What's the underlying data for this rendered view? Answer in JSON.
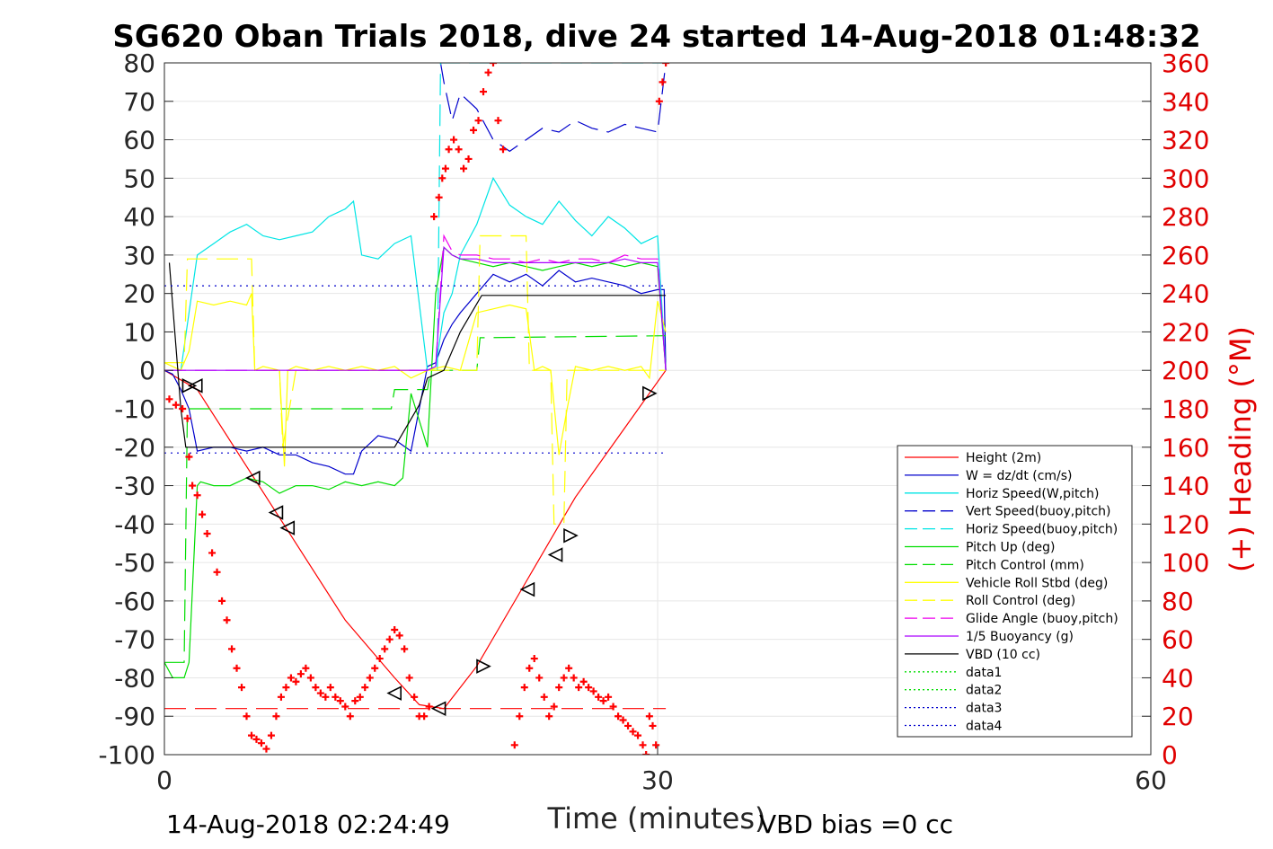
{
  "chart_data": {
    "type": "line",
    "title": "SG620 Oban Trials 2018, dive 24 started 14-Aug-2018 01:48:32",
    "xlabel": "Time (minutes)",
    "ylabel_right": "(+) Heading (°M)",
    "xlim": [
      0,
      60
    ],
    "ylim_left": [
      -100,
      80
    ],
    "ylim_right": [
      0,
      360
    ],
    "x_ticks": [
      "0",
      "30",
      "60"
    ],
    "y_left_ticks": [
      "80",
      "70",
      "60",
      "50",
      "40",
      "30",
      "20",
      "10",
      "0",
      "-10",
      "-20",
      "-30",
      "-40",
      "-50",
      "-60",
      "-70",
      "-80",
      "-90",
      "-100"
    ],
    "y_right_ticks": [
      "360",
      "340",
      "320",
      "300",
      "280",
      "260",
      "240",
      "220",
      "200",
      "180",
      "160",
      "140",
      "120",
      "100",
      "80",
      "60",
      "40",
      "20",
      "0"
    ],
    "grid": true,
    "legend_position": "lower-right",
    "footer_left": "14-Aug-2018 02:24:49",
    "footer_right": "VBD bias =0 cc",
    "legend": [
      {
        "name": "Height (2m)",
        "color": "#ff0000",
        "dash": "solid"
      },
      {
        "name": "W = dz/dt (cm/s)",
        "color": "#0000cc",
        "dash": "solid"
      },
      {
        "name": "Horiz Speed(W,pitch)",
        "color": "#00e5e5",
        "dash": "solid"
      },
      {
        "name": "Vert Speed(buoy,pitch)",
        "color": "#0000cc",
        "dash": "dashed"
      },
      {
        "name": "Horiz Speed(buoy,pitch)",
        "color": "#00e5e5",
        "dash": "dashed"
      },
      {
        "name": "Pitch Up (deg)",
        "color": "#00dd00",
        "dash": "solid"
      },
      {
        "name": "Pitch Control (mm)",
        "color": "#00dd00",
        "dash": "dashed"
      },
      {
        "name": "Vehicle Roll Stbd (deg)",
        "color": "#ffff00",
        "dash": "solid"
      },
      {
        "name": "Roll Control (deg)",
        "color": "#ffff00",
        "dash": "dashed"
      },
      {
        "name": "Glide Angle (buoy,pitch)",
        "color": "#ee00ee",
        "dash": "dashed"
      },
      {
        "name": "1/5 Buoyancy (g)",
        "color": "#aa00ff",
        "dash": "solid"
      },
      {
        "name": "VBD (10 cc)",
        "color": "#000000",
        "dash": "solid"
      },
      {
        "name": "data1",
        "color": "#00dd00",
        "dash": "dotted"
      },
      {
        "name": "data2",
        "color": "#00dd00",
        "dash": "dotted"
      },
      {
        "name": "data3",
        "color": "#0000cc",
        "dash": "dotted"
      },
      {
        "name": "data4",
        "color": "#0000cc",
        "dash": "dotted"
      }
    ],
    "series": [
      {
        "key": "height",
        "color": "#ff0000",
        "dash": "solid",
        "x": [
          0,
          2,
          5,
          8,
          11,
          14,
          15.5,
          17,
          19,
          22,
          25,
          28,
          30.5
        ],
        "y": [
          0,
          -5,
          -25,
          -45,
          -65,
          -80,
          -87,
          -88,
          -77,
          -55,
          -33,
          -15,
          0
        ]
      },
      {
        "key": "w",
        "color": "#0000cc",
        "dash": "solid",
        "x": [
          0,
          0.5,
          1,
          1.5,
          2,
          3,
          4,
          5,
          6,
          7,
          8,
          9,
          10,
          11,
          11.5,
          12,
          13,
          14,
          15,
          16,
          16.5,
          17,
          17.5,
          18,
          19,
          20,
          21,
          22,
          23,
          24,
          25,
          26,
          27,
          28,
          29,
          30,
          30.4,
          30.5
        ],
        "y": [
          0,
          -1,
          -5,
          -10,
          -21,
          -20,
          -20,
          -21,
          -20,
          -22,
          -22,
          -24,
          -25,
          -27,
          -27,
          -21,
          -17,
          -18,
          -21,
          1,
          2,
          8,
          12,
          15,
          20,
          25,
          23,
          25,
          22,
          26,
          23,
          24,
          23,
          22,
          20,
          21,
          21,
          0
        ]
      },
      {
        "key": "horiz_w",
        "color": "#00e5e5",
        "dash": "solid",
        "x": [
          0,
          1,
          1.5,
          2,
          3,
          4,
          5,
          6,
          7,
          8,
          9,
          10,
          11,
          11.5,
          12,
          13,
          14,
          15,
          16,
          16.5,
          17,
          17.5,
          18,
          19,
          20,
          21,
          22,
          23,
          24,
          25,
          26,
          27,
          28,
          29,
          30,
          30.5
        ],
        "y": [
          0,
          0,
          15,
          30,
          33,
          36,
          38,
          35,
          34,
          35,
          36,
          40,
          42,
          44,
          30,
          29,
          33,
          35,
          0,
          1,
          15,
          20,
          30,
          38,
          50,
          43,
          40,
          38,
          44,
          39,
          35,
          40,
          37,
          33,
          35,
          0
        ]
      },
      {
        "key": "vert_buoy",
        "color": "#0000cc",
        "dash": "dashed",
        "x": [
          16.8,
          17,
          17.5,
          18,
          19,
          20,
          21,
          22,
          23,
          24,
          25,
          26,
          27,
          28,
          29,
          30,
          30.5
        ],
        "y": [
          80,
          75,
          65,
          72,
          68,
          60,
          57,
          60,
          63,
          62,
          65,
          63,
          62,
          64,
          63,
          62,
          80
        ]
      },
      {
        "key": "horiz_buoy",
        "color": "#00e5e5",
        "dash": "dashed",
        "x": [
          16.6,
          16.8,
          17,
          30.2,
          30.5
        ],
        "y": [
          0,
          80,
          80,
          80,
          80
        ]
      },
      {
        "key": "pitch_up",
        "color": "#00dd00",
        "dash": "solid",
        "x": [
          0,
          0.5,
          1.2,
          1.5,
          2,
          2.2,
          3,
          4,
          5,
          6,
          7,
          8,
          9,
          10,
          11,
          12,
          13,
          14,
          14.5,
          15,
          16,
          16.5,
          17,
          17.5,
          18,
          19,
          20,
          21,
          22,
          23,
          24,
          25,
          26,
          27,
          28,
          29,
          30,
          30.5
        ],
        "y": [
          -76,
          -80,
          -80,
          -76,
          -30,
          -29,
          -30,
          -30,
          -28,
          -29,
          -32,
          -30,
          -30,
          -31,
          -29,
          -30,
          -29,
          -30,
          -28,
          -6,
          -20,
          20,
          32,
          30,
          29,
          28,
          27,
          28,
          27,
          26,
          27,
          28,
          27,
          28,
          27,
          28,
          27,
          0
        ]
      },
      {
        "key": "pitch_ctl",
        "color": "#00dd00",
        "dash": "dashed",
        "x": [
          0,
          1.2,
          1.4,
          13.8,
          14,
          16,
          16.2,
          17,
          19,
          19.2,
          30.5
        ],
        "y": [
          -76,
          -76,
          -10,
          -10,
          -5,
          -5,
          0,
          0,
          0,
          8.5,
          9
        ]
      },
      {
        "key": "roll",
        "color": "#ffff00",
        "dash": "solid",
        "x": [
          0,
          1,
          1.5,
          2,
          3,
          4,
          5,
          5.3,
          5.5,
          6,
          7,
          7.3,
          7.5,
          8,
          9,
          10,
          11,
          12,
          13,
          14,
          15,
          16,
          17,
          18,
          19,
          20,
          21,
          22,
          22.5,
          23,
          23.5,
          24,
          24.5,
          25,
          26,
          27,
          28,
          29,
          29.5,
          30,
          30.5
        ],
        "y": [
          2,
          0,
          5,
          18,
          17,
          18,
          17,
          20,
          0,
          1,
          0,
          -25,
          0,
          1,
          0,
          1,
          0,
          1,
          0,
          1,
          -2,
          0,
          1,
          0,
          15,
          16,
          17,
          16,
          0,
          1,
          0,
          -22,
          -10,
          1,
          0,
          1,
          0,
          1,
          -2,
          18,
          10
        ]
      },
      {
        "key": "roll_ctl",
        "color": "#ffff00",
        "dash": "dashed",
        "x": [
          0,
          1.2,
          1.4,
          5.3,
          5.5,
          7,
          7.2,
          8,
          19,
          19.2,
          22,
          22.2,
          23.5,
          23.7,
          24.3,
          24.5,
          30.5
        ],
        "y": [
          2,
          2,
          29,
          29,
          0,
          0,
          -20,
          0,
          0,
          35,
          35,
          0,
          0,
          -40,
          -40,
          0,
          0
        ]
      },
      {
        "key": "glide",
        "color": "#ee00ee",
        "dash": "dashed",
        "x": [
          0,
          16,
          16.5,
          17,
          17.5,
          18,
          19,
          20,
          21,
          22,
          23,
          24,
          25,
          26,
          27,
          28,
          29,
          30,
          30.5
        ],
        "y": [
          0,
          0,
          1,
          35,
          31,
          30,
          30,
          29,
          29,
          28,
          29,
          28,
          29,
          29,
          28,
          30,
          29,
          29,
          0
        ]
      },
      {
        "key": "buoy",
        "color": "#aa00ff",
        "dash": "solid",
        "x": [
          0,
          16,
          16.5,
          17,
          17.5,
          18,
          19,
          20,
          21,
          22,
          23,
          24,
          25,
          26,
          27,
          28,
          29,
          30,
          30.5
        ],
        "y": [
          0,
          0,
          1,
          32,
          30,
          29,
          29,
          28,
          28,
          28,
          28,
          28,
          28,
          28,
          28,
          29,
          28,
          28,
          0
        ]
      },
      {
        "key": "vbd",
        "color": "#000000",
        "dash": "solid",
        "x": [
          0.3,
          1,
          1.3,
          1.5,
          2,
          13.9,
          14,
          15.5,
          16,
          17,
          18,
          19.3,
          30.5
        ],
        "y": [
          28,
          -10,
          -20,
          -20,
          -20,
          -20,
          -20,
          -9,
          -2,
          0,
          10,
          19.5,
          19.5
        ]
      },
      {
        "key": "data1",
        "color": "#00dd00",
        "dash": "dotted",
        "x": [],
        "y": []
      },
      {
        "key": "data2",
        "color": "#00dd00",
        "dash": "dotted",
        "x": [],
        "y": []
      },
      {
        "key": "data3",
        "color": "#0000cc",
        "dash": "dotted",
        "x": [
          0,
          30.5
        ],
        "y": [
          22,
          22
        ]
      },
      {
        "key": "data4",
        "color": "#0000cc",
        "dash": "dotted",
        "x": [
          0,
          30.5
        ],
        "y": [
          -21.5,
          -21.5
        ]
      },
      {
        "key": "ref_red_dash",
        "color": "#ff0000",
        "dash": "dashed",
        "x": [
          0,
          30.5
        ],
        "y": [
          -88,
          -88
        ]
      }
    ],
    "heading": {
      "color": "#ff0000",
      "marker": "+",
      "axis": "right",
      "x": [
        0.3,
        0.7,
        1.1,
        1.4,
        1.5,
        1.7,
        2.0,
        2.3,
        2.6,
        2.9,
        3.2,
        3.5,
        3.8,
        4.1,
        4.4,
        4.7,
        5.0,
        5.3,
        5.6,
        5.9,
        6.2,
        6.5,
        6.8,
        7.1,
        7.4,
        7.7,
        8.0,
        8.3,
        8.6,
        8.9,
        9.2,
        9.5,
        9.8,
        10.1,
        10.4,
        10.7,
        11.0,
        11.3,
        11.6,
        11.9,
        12.2,
        12.5,
        12.8,
        13.1,
        13.4,
        13.7,
        14.0,
        14.3,
        14.6,
        14.9,
        15.2,
        15.5,
        15.8,
        16.1,
        16.4,
        16.7,
        16.9,
        17.1,
        17.3,
        17.6,
        17.9,
        18.2,
        18.5,
        18.8,
        19.1,
        19.4,
        19.7,
        20.0,
        20.3,
        20.6,
        21.3,
        21.6,
        21.9,
        22.2,
        22.5,
        22.8,
        23.1,
        23.4,
        23.7,
        24.0,
        24.3,
        24.6,
        24.9,
        25.2,
        25.5,
        25.8,
        26.1,
        26.4,
        26.7,
        27.0,
        27.3,
        27.6,
        27.9,
        28.2,
        28.5,
        28.8,
        29.1,
        29.3,
        29.5,
        29.7,
        29.9,
        30.1,
        30.3,
        30.5
      ],
      "y": [
        185,
        182,
        180,
        175,
        155,
        140,
        135,
        125,
        115,
        105,
        95,
        80,
        70,
        55,
        45,
        35,
        20,
        10,
        8,
        6,
        3,
        10,
        20,
        30,
        35,
        40,
        38,
        42,
        45,
        40,
        35,
        32,
        30,
        35,
        30,
        28,
        25,
        20,
        28,
        30,
        35,
        40,
        45,
        50,
        55,
        60,
        65,
        62,
        55,
        40,
        30,
        20,
        20,
        25,
        280,
        290,
        300,
        305,
        315,
        320,
        315,
        305,
        310,
        325,
        330,
        345,
        355,
        360,
        330,
        315,
        5,
        20,
        35,
        45,
        50,
        40,
        30,
        20,
        25,
        35,
        40,
        45,
        40,
        35,
        38,
        35,
        33,
        30,
        28,
        30,
        25,
        20,
        18,
        15,
        12,
        10,
        5,
        0,
        20,
        15,
        5,
        340,
        350,
        360
      ]
    },
    "triangle_markers": [
      {
        "x": 1.5,
        "y": -4,
        "dir": "right"
      },
      {
        "x": 1.9,
        "y": -4,
        "dir": "left"
      },
      {
        "x": 5.4,
        "y": -28,
        "dir": "left"
      },
      {
        "x": 6.8,
        "y": -37,
        "dir": "left"
      },
      {
        "x": 7.5,
        "y": -41,
        "dir": "left"
      },
      {
        "x": 14.0,
        "y": -84,
        "dir": "left"
      },
      {
        "x": 16.7,
        "y": -88,
        "dir": "left"
      },
      {
        "x": 19.4,
        "y": -77,
        "dir": "right"
      },
      {
        "x": 22.1,
        "y": -57,
        "dir": "left"
      },
      {
        "x": 23.8,
        "y": -48,
        "dir": "left"
      },
      {
        "x": 24.7,
        "y": -43,
        "dir": "right"
      },
      {
        "x": 29.5,
        "y": -6,
        "dir": "right"
      }
    ]
  }
}
